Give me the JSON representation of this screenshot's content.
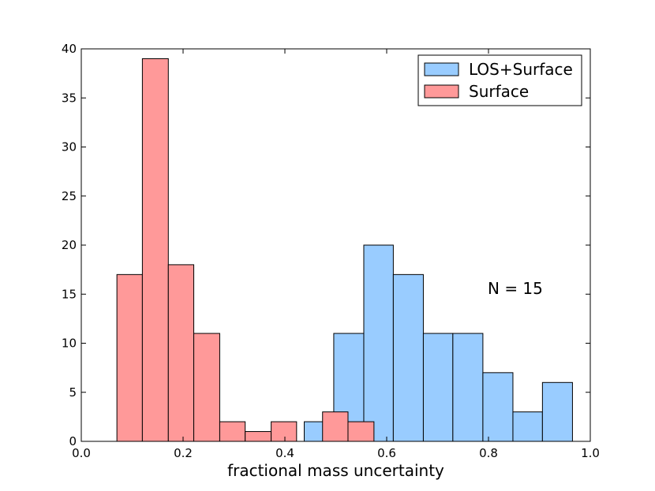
{
  "chart_data": {
    "type": "bar",
    "xlabel": "fractional mass uncertainty",
    "ylabel": "",
    "xlim": [
      0.0,
      1.0
    ],
    "ylim": [
      0,
      40
    ],
    "xticks": [
      "0.0",
      "0.2",
      "0.4",
      "0.6",
      "0.8",
      "1.0"
    ],
    "yticks": [
      "0",
      "5",
      "10",
      "15",
      "20",
      "25",
      "30",
      "35",
      "40"
    ],
    "grid": false,
    "legend_position": "top-right",
    "annotation": "N = 15",
    "series": [
      {
        "name": "LOS+Surface",
        "color": "#99ccff",
        "bins": [
          {
            "x0": 0.438,
            "x1": 0.496,
            "value": 2
          },
          {
            "x0": 0.496,
            "x1": 0.555,
            "value": 11
          },
          {
            "x0": 0.555,
            "x1": 0.613,
            "value": 20
          },
          {
            "x0": 0.613,
            "x1": 0.672,
            "value": 17
          },
          {
            "x0": 0.672,
            "x1": 0.73,
            "value": 11
          },
          {
            "x0": 0.73,
            "x1": 0.789,
            "value": 11
          },
          {
            "x0": 0.789,
            "x1": 0.848,
            "value": 7
          },
          {
            "x0": 0.848,
            "x1": 0.906,
            "value": 3
          },
          {
            "x0": 0.906,
            "x1": 0.965,
            "value": 6
          }
        ]
      },
      {
        "name": "Surface",
        "color": "#ff9999",
        "bins": [
          {
            "x0": 0.07,
            "x1": 0.12,
            "value": 17
          },
          {
            "x0": 0.12,
            "x1": 0.171,
            "value": 39
          },
          {
            "x0": 0.171,
            "x1": 0.221,
            "value": 18
          },
          {
            "x0": 0.221,
            "x1": 0.272,
            "value": 11
          },
          {
            "x0": 0.272,
            "x1": 0.322,
            "value": 2
          },
          {
            "x0": 0.322,
            "x1": 0.373,
            "value": 1
          },
          {
            "x0": 0.373,
            "x1": 0.423,
            "value": 2
          },
          {
            "x0": 0.423,
            "x1": 0.474,
            "value": 0
          },
          {
            "x0": 0.474,
            "x1": 0.524,
            "value": 3
          },
          {
            "x0": 0.524,
            "x1": 0.575,
            "value": 2
          }
        ]
      }
    ]
  }
}
